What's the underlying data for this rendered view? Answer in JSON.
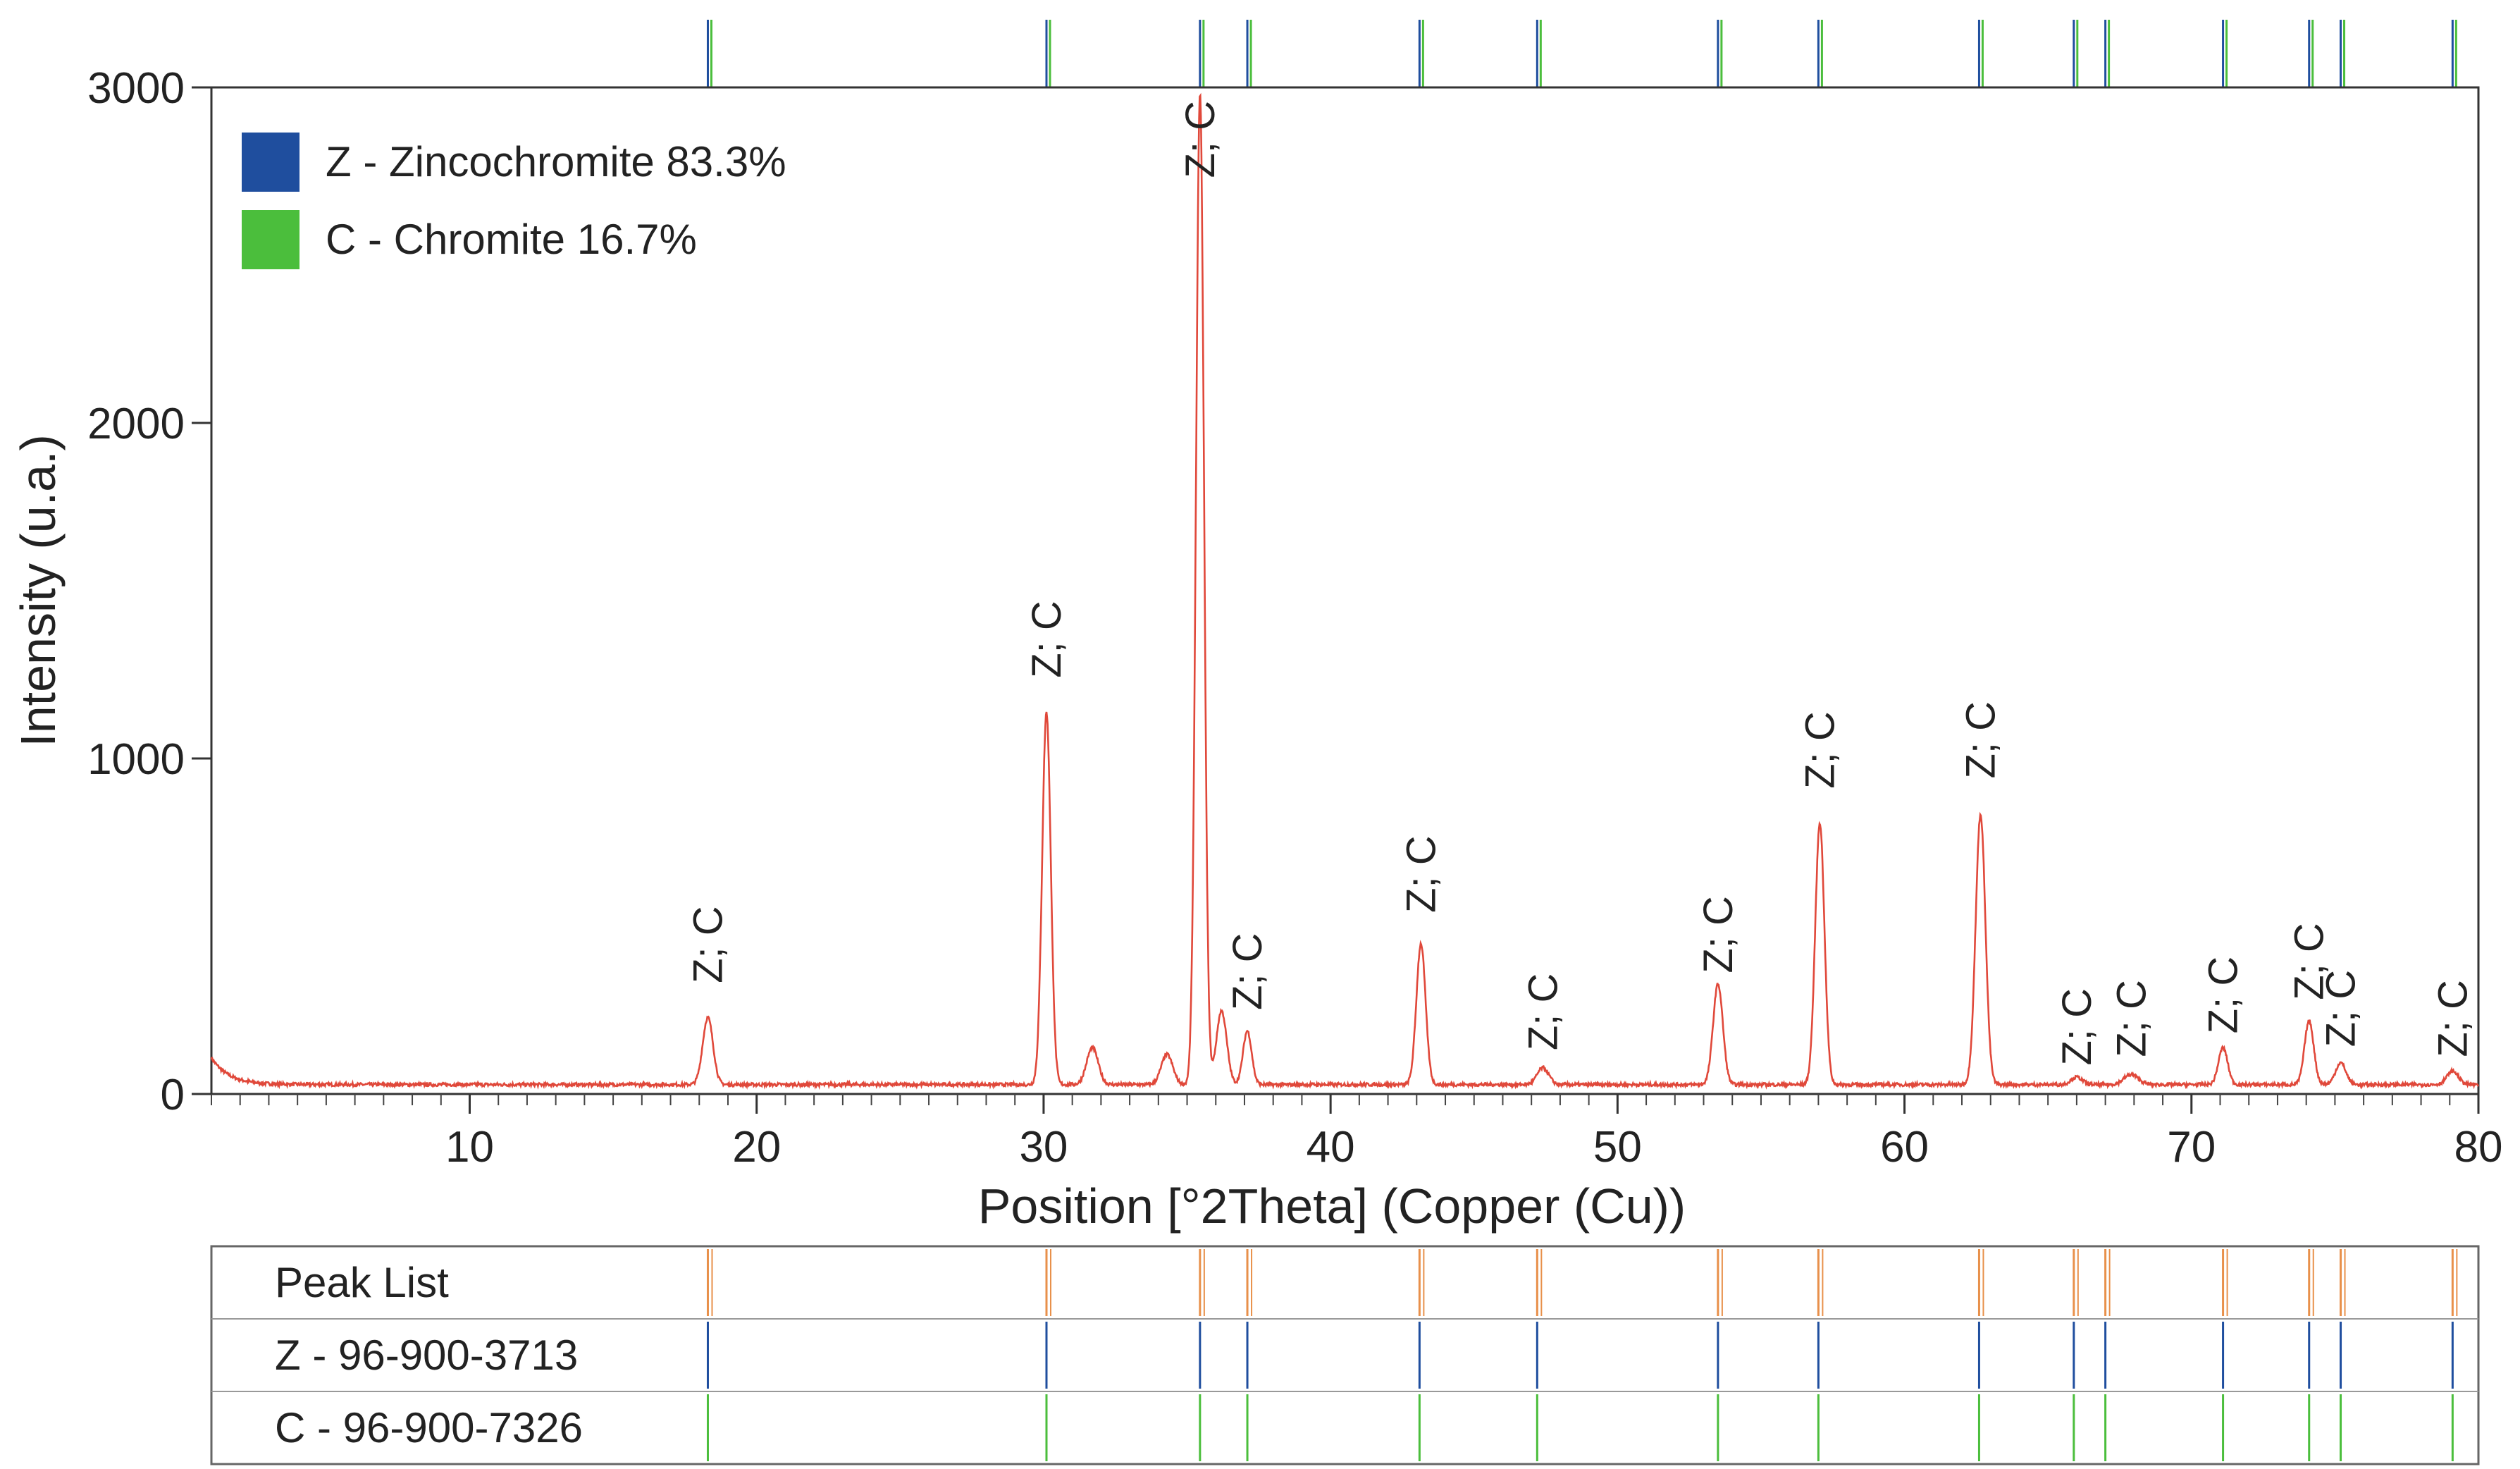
{
  "chart_data": {
    "type": "line",
    "xlabel": "Position [°2Theta] (Copper (Cu))",
    "ylabel": "Intensity (u.a.)",
    "xlim": [
      1,
      80
    ],
    "ylim": [
      0,
      3000
    ],
    "x_ticks": [
      10,
      20,
      30,
      40,
      50,
      60,
      70,
      80
    ],
    "y_ticks": [
      0,
      1000,
      2000,
      3000
    ],
    "grid": false,
    "legend_position": "top-left",
    "legend": [
      {
        "label": "Z - Zincochromite 83.3%",
        "color": "#1f4e9e"
      },
      {
        "label": "C - Chromite 16.7%",
        "color": "#4bbe3c"
      }
    ],
    "series_color": "#e0483a",
    "background": 28,
    "peaks": [
      {
        "x": 18.3,
        "y": 200,
        "w": 0.18
      },
      {
        "x": 30.1,
        "y": 1110,
        "w": 0.15
      },
      {
        "x": 31.7,
        "y": 110,
        "w": 0.2
      },
      {
        "x": 34.3,
        "y": 90,
        "w": 0.2
      },
      {
        "x": 35.45,
        "y": 2950,
        "w": 0.14
      },
      {
        "x": 36.2,
        "y": 220,
        "w": 0.18
      },
      {
        "x": 37.1,
        "y": 160,
        "w": 0.15
      },
      {
        "x": 43.15,
        "y": 420,
        "w": 0.16
      },
      {
        "x": 47.4,
        "y": 50,
        "w": 0.2
      },
      {
        "x": 53.5,
        "y": 300,
        "w": 0.17
      },
      {
        "x": 57.05,
        "y": 780,
        "w": 0.16
      },
      {
        "x": 62.65,
        "y": 805,
        "w": 0.17
      },
      {
        "x": 66.0,
        "y": 22,
        "w": 0.2
      },
      {
        "x": 67.9,
        "y": 30,
        "w": 0.25
      },
      {
        "x": 71.1,
        "y": 110,
        "w": 0.16
      },
      {
        "x": 74.1,
        "y": 190,
        "w": 0.16
      },
      {
        "x": 75.2,
        "y": 65,
        "w": 0.18
      },
      {
        "x": 79.1,
        "y": 40,
        "w": 0.2
      }
    ],
    "annotation_text": "Z; C",
    "annotations": [
      {
        "x": 18.3,
        "y": 330
      },
      {
        "x": 30.1,
        "y": 1240
      },
      {
        "x": 35.45,
        "y": 2730
      },
      {
        "x": 37.1,
        "y": 250
      },
      {
        "x": 43.15,
        "y": 540
      },
      {
        "x": 47.4,
        "y": 130
      },
      {
        "x": 53.5,
        "y": 360
      },
      {
        "x": 57.05,
        "y": 910
      },
      {
        "x": 62.65,
        "y": 940
      },
      {
        "x": 66.0,
        "y": 85
      },
      {
        "x": 67.9,
        "y": 110
      },
      {
        "x": 71.1,
        "y": 180
      },
      {
        "x": 74.1,
        "y": 280
      },
      {
        "x": 75.2,
        "y": 140
      },
      {
        "x": 79.1,
        "y": 110
      }
    ],
    "reference_panel": {
      "rows": [
        {
          "label": "Peak List",
          "color": "#e8904a"
        },
        {
          "label": "Z - 96-900-3713",
          "color": "#1f4e9e"
        },
        {
          "label": "C - 96-900-7326",
          "color": "#4bbe3c"
        }
      ],
      "positions": [
        18.3,
        30.1,
        35.45,
        37.1,
        43.1,
        47.2,
        53.5,
        57.0,
        62.6,
        65.9,
        67.0,
        71.1,
        74.1,
        75.2,
        79.1
      ]
    }
  }
}
